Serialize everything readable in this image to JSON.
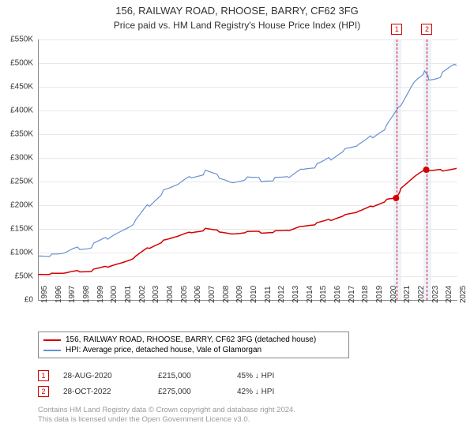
{
  "title": "156, RAILWAY ROAD, RHOOSE, BARRY, CF62 3FG",
  "subtitle": "Price paid vs. HM Land Registry's House Price Index (HPI)",
  "chart": {
    "type": "line",
    "background_color": "#ffffff",
    "grid_color": "#e8e8e8",
    "axis_color": "#888888",
    "x_start_year": 1995,
    "x_end_year": 2025,
    "xtick_years": [
      1995,
      1996,
      1997,
      1998,
      1999,
      2000,
      2001,
      2002,
      2003,
      2004,
      2005,
      2006,
      2007,
      2008,
      2009,
      2010,
      2011,
      2012,
      2013,
      2014,
      2015,
      2016,
      2017,
      2018,
      2019,
      2020,
      2021,
      2022,
      2023,
      2024,
      2025
    ],
    "ylim": [
      0,
      550000
    ],
    "ytick_step": 50000,
    "ytick_labels": [
      "£0",
      "£50K",
      "£100K",
      "£150K",
      "£200K",
      "£250K",
      "£300K",
      "£350K",
      "£400K",
      "£450K",
      "£500K",
      "£550K"
    ],
    "series": [
      {
        "name": "156, RAILWAY ROAD, RHOOSE, BARRY, CF62 3FG (detached house)",
        "color": "#d40000",
        "line_width": 1.5,
        "points": [
          [
            1995,
            55000
          ],
          [
            1996,
            56000
          ],
          [
            1997,
            57000
          ],
          [
            1998,
            60000
          ],
          [
            1999,
            64000
          ],
          [
            2000,
            70000
          ],
          [
            2001,
            78000
          ],
          [
            2002,
            92000
          ],
          [
            2003,
            110000
          ],
          [
            2004,
            125000
          ],
          [
            2005,
            135000
          ],
          [
            2006,
            142000
          ],
          [
            2007,
            150000
          ],
          [
            2008,
            145000
          ],
          [
            2009,
            138000
          ],
          [
            2010,
            145000
          ],
          [
            2011,
            142000
          ],
          [
            2012,
            144000
          ],
          [
            2013,
            148000
          ],
          [
            2014,
            155000
          ],
          [
            2015,
            162000
          ],
          [
            2016,
            170000
          ],
          [
            2017,
            178000
          ],
          [
            2018,
            188000
          ],
          [
            2019,
            198000
          ],
          [
            2020,
            210000
          ],
          [
            2020.66,
            215000
          ],
          [
            2021,
            235000
          ],
          [
            2022,
            260000
          ],
          [
            2022.82,
            275000
          ],
          [
            2023,
            272000
          ],
          [
            2024,
            275000
          ],
          [
            2025,
            278000
          ]
        ]
      },
      {
        "name": "HPI: Average price, detached house, Vale of Glamorgan",
        "color": "#6b8fd4",
        "line_width": 1.2,
        "points": [
          [
            1995,
            95000
          ],
          [
            1996,
            96000
          ],
          [
            1997,
            100000
          ],
          [
            1998,
            108000
          ],
          [
            1999,
            118000
          ],
          [
            2000,
            130000
          ],
          [
            2001,
            145000
          ],
          [
            2002,
            168000
          ],
          [
            2003,
            200000
          ],
          [
            2004,
            230000
          ],
          [
            2005,
            245000
          ],
          [
            2006,
            258000
          ],
          [
            2007,
            272000
          ],
          [
            2008,
            260000
          ],
          [
            2009,
            245000
          ],
          [
            2010,
            260000
          ],
          [
            2011,
            252000
          ],
          [
            2012,
            255000
          ],
          [
            2013,
            262000
          ],
          [
            2014,
            275000
          ],
          [
            2015,
            285000
          ],
          [
            2016,
            300000
          ],
          [
            2017,
            315000
          ],
          [
            2018,
            330000
          ],
          [
            2019,
            345000
          ],
          [
            2020,
            365000
          ],
          [
            2021,
            415000
          ],
          [
            2022,
            460000
          ],
          [
            2022.7,
            480000
          ],
          [
            2023,
            468000
          ],
          [
            2024,
            478000
          ],
          [
            2025,
            495000
          ]
        ]
      }
    ],
    "sale_markers": [
      {
        "n": "1",
        "year": 2020.66,
        "price": 215000,
        "color": "#d40000"
      },
      {
        "n": "2",
        "year": 2022.82,
        "price": 275000,
        "color": "#d40000"
      }
    ],
    "vbands_color": "#eef2fb",
    "vbands_border": "#d40000"
  },
  "legend": {
    "rows": [
      {
        "color": "#d40000",
        "label": "156, RAILWAY ROAD, RHOOSE, BARRY, CF62 3FG (detached house)"
      },
      {
        "color": "#6b8fd4",
        "label": "HPI: Average price, detached house, Vale of Glamorgan"
      }
    ]
  },
  "sales": [
    {
      "n": "1",
      "date": "28-AUG-2020",
      "price": "£215,000",
      "pct": "45% ↓ HPI",
      "color": "#d40000"
    },
    {
      "n": "2",
      "date": "28-OCT-2022",
      "price": "£275,000",
      "pct": "42% ↓ HPI",
      "color": "#d40000"
    }
  ],
  "footer": {
    "line1": "Contains HM Land Registry data © Crown copyright and database right 2024.",
    "line2": "This data is licensed under the Open Government Licence v3.0."
  }
}
